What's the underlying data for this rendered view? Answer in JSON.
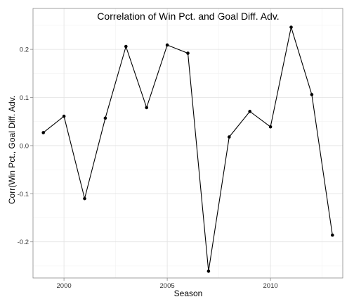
{
  "chart_data": {
    "type": "line",
    "title": "Correlation of Win Pct. and Goal Diff. Adv.",
    "xlabel": "Season",
    "ylabel": "Corr(Win Pct., Goal Diff. Adv.",
    "xlim": [
      1998.5,
      2013.5
    ],
    "ylim": [
      -0.275,
      0.285
    ],
    "x_ticks": [
      2000,
      2005,
      2010
    ],
    "x_tick_labels": [
      "2000",
      "2005",
      "2010"
    ],
    "y_ticks": [
      -0.2,
      -0.1,
      0.0,
      0.1,
      0.2
    ],
    "y_tick_labels": [
      "-0.2",
      "-0.1",
      "0.0",
      "0.1",
      "0.2"
    ],
    "grid": true,
    "series": [
      {
        "x": [
          1999,
          2000,
          2001,
          2002,
          2003,
          2004,
          2005,
          2006,
          2007,
          2008,
          2009,
          2010,
          2011,
          2012,
          2013
        ],
        "values": [
          0.027,
          0.061,
          -0.11,
          0.057,
          0.206,
          0.079,
          0.209,
          0.192,
          -0.261,
          0.018,
          0.071,
          0.039,
          0.246,
          0.106,
          -0.186
        ]
      }
    ]
  }
}
